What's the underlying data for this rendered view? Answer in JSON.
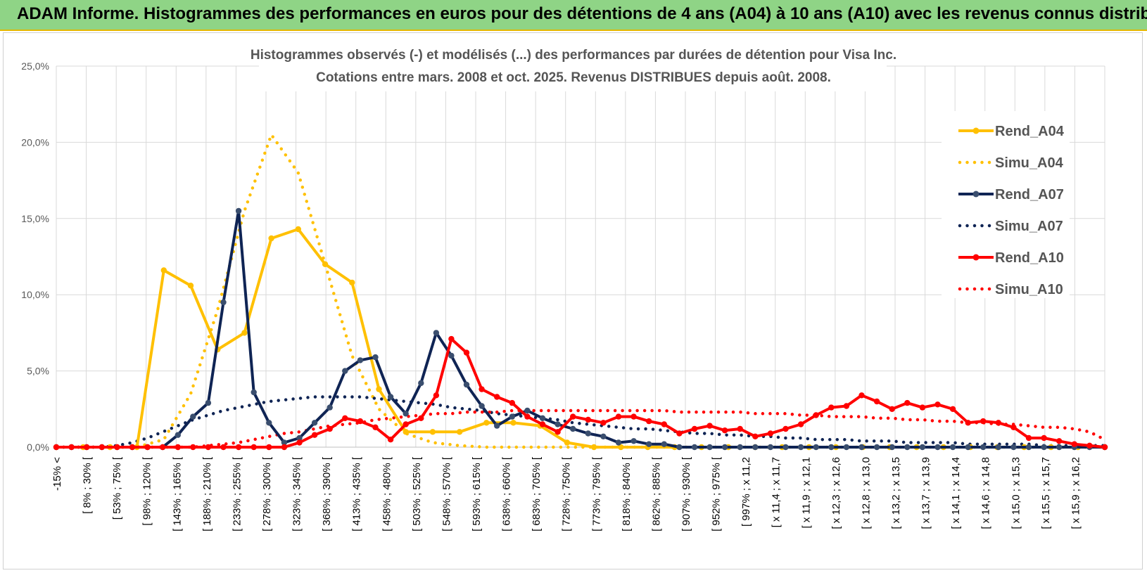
{
  "header": {
    "title": "ADAM Informe. Histogrammes des performances en euros pour des détentions de 4 ans (A04) à 10 ans (A10) avec les revenus connus distribués"
  },
  "chart_data": {
    "type": "line",
    "title": "Histogrammes observés (-) et modélisés (...) des performances par durées de détention pour Visa Inc.",
    "subtitle": "Cotations entre mars. 2008 et oct. 2025. Revenus DISTRIBUES depuis août. 2008.",
    "y_ticks": [
      "0,0%",
      "5,0%",
      "10,0%",
      "15,0%",
      "20,0%",
      "25,0%"
    ],
    "ylim": [
      0,
      25
    ],
    "legend_position": "right",
    "x_tick_labels": [
      "-15% <",
      "[ 8% ; 30% [",
      "[ 53% ; 75% [",
      "[ 98% ; 120% [",
      "[ 143% ; 165% [",
      "[ 188% ; 210% [",
      "[ 233% ; 255% [",
      "[ 278% ; 300% [",
      "[ 323% ; 345% [",
      "[ 368% ; 390% [",
      "[ 413% ; 435% [",
      "[ 458% ; 480% [",
      "[ 503% ; 525% [",
      "[ 548% ; 570% [",
      "[ 593% ; 615% [",
      "[ 638% ; 660% [",
      "[ 683% ; 705% [",
      "[ 728% ; 750% [",
      "[ 773% ; 795% [",
      "[ 818% ; 840% [",
      "[ 862% ; 885% [",
      "[ 907% ; 930% [",
      "[ 952% ; 975% [",
      "[ 997% ; x 11,2",
      "[ x 11,4 ; x 11,7",
      "[ x 11,9 ; x 12,1",
      "[ x 12,3 ; x 12,6",
      "[ x 12,8 ; x 13,0",
      "[ x 13,2 ; x 13,5",
      "[ x 13,7 ; x 13,9",
      "[ x 14,1 ; x 14,4",
      "[ x 14,6 ; x 14,8",
      "[ x 15,0 ; x 15,3",
      "[ x 15,5 ; x 15,7",
      "[ x 15,9 ; x 16,2"
    ],
    "series": [
      {
        "name": "Rend_A04",
        "style": "solid",
        "color": "#ffc000",
        "values": [
          0,
          0,
          0,
          0,
          11.6,
          10.6,
          6.4,
          7.5,
          13.7,
          14.3,
          12.0,
          10.8,
          3.8,
          1.0,
          1.0,
          1.0,
          1.6,
          1.6,
          1.4,
          0.3,
          0,
          0,
          0,
          0,
          0,
          0,
          0,
          0,
          0,
          0,
          0,
          0,
          0,
          0,
          0,
          0,
          0,
          0,
          0,
          0
        ]
      },
      {
        "name": "Simu_A04",
        "style": "dotted",
        "color": "#ffc000",
        "values": [
          0,
          0,
          0,
          0,
          0.5,
          3.5,
          9.0,
          15.5,
          20.5,
          18.0,
          12.0,
          6.0,
          2.5,
          0.9,
          0.3,
          0.1,
          0,
          0,
          0,
          0,
          0,
          0,
          0,
          0,
          0,
          0,
          0,
          0,
          0,
          0,
          0,
          0,
          0,
          0,
          0,
          0,
          0,
          0,
          0,
          0
        ]
      },
      {
        "name": "Rend_A07",
        "style": "solid",
        "color": "#0f2454",
        "values": [
          0,
          0,
          0,
          0,
          0,
          0,
          0,
          0,
          0.8,
          2.0,
          2.9,
          9.5,
          15.5,
          3.6,
          1.6,
          0.3,
          0.6,
          1.6,
          2.6,
          5.0,
          5.7,
          5.9,
          3.3,
          2.2,
          4.2,
          7.5,
          6.0,
          4.1,
          2.7,
          1.4,
          2.0,
          2.4,
          1.9,
          1.5,
          1.2,
          0.9,
          0.7,
          0.3,
          0.4,
          0.2,
          0.2,
          0,
          0,
          0,
          0,
          0,
          0,
          0,
          0,
          0,
          0,
          0,
          0,
          0,
          0,
          0,
          0,
          0,
          0,
          0,
          0,
          0,
          0,
          0,
          0,
          0,
          0,
          0,
          0,
          0
        ]
      },
      {
        "name": "Simu_A07",
        "style": "dotted",
        "color": "#0f2454",
        "values": [
          0,
          0,
          0,
          0,
          0.1,
          0.3,
          0.6,
          1.0,
          1.4,
          1.8,
          2.1,
          2.4,
          2.6,
          2.8,
          3.0,
          3.1,
          3.2,
          3.3,
          3.3,
          3.3,
          3.3,
          3.2,
          3.1,
          3.0,
          2.9,
          2.8,
          2.6,
          2.5,
          2.4,
          2.2,
          2.1,
          2.0,
          1.9,
          1.8,
          1.6,
          1.5,
          1.4,
          1.3,
          1.2,
          1.2,
          1.1,
          1.0,
          0.9,
          0.9,
          0.8,
          0.8,
          0.7,
          0.7,
          0.6,
          0.6,
          0.5,
          0.5,
          0.5,
          0.4,
          0.4,
          0.4,
          0.3,
          0.3,
          0.3,
          0.3,
          0.2,
          0.2,
          0.2,
          0.2,
          0.2,
          0.1,
          0.1,
          0.1,
          0.1,
          0.1
        ]
      },
      {
        "name": "Rend_A10",
        "style": "solid",
        "color": "#ff0000",
        "values": [
          0,
          0,
          0,
          0,
          0,
          0,
          0,
          0,
          0,
          0,
          0,
          0,
          0,
          0,
          0,
          0,
          0.3,
          0.8,
          1.2,
          1.9,
          1.7,
          1.3,
          0.5,
          1.5,
          1.9,
          3.4,
          7.1,
          6.2,
          3.8,
          3.3,
          2.9,
          2.0,
          1.5,
          1.0,
          2.0,
          1.8,
          1.6,
          2.0,
          2.0,
          1.7,
          1.5,
          0.9,
          1.2,
          1.4,
          1.1,
          1.2,
          0.7,
          0.9,
          1.2,
          1.5,
          2.1,
          2.6,
          2.7,
          3.4,
          3.0,
          2.5,
          2.9,
          2.6,
          2.8,
          2.5,
          1.6,
          1.7,
          1.6,
          1.3,
          0.6,
          0.6,
          0.4,
          0.2,
          0.1,
          0
        ]
      },
      {
        "name": "Simu_A10",
        "style": "dotted",
        "color": "#ff0000",
        "values": [
          0,
          0,
          0,
          0,
          0,
          0,
          0,
          0,
          0,
          0,
          0.1,
          0.2,
          0.3,
          0.5,
          0.7,
          0.9,
          1.0,
          1.2,
          1.4,
          1.5,
          1.6,
          1.8,
          1.9,
          2.0,
          2.1,
          2.2,
          2.2,
          2.3,
          2.3,
          2.3,
          2.4,
          2.4,
          2.4,
          2.4,
          2.4,
          2.4,
          2.4,
          2.4,
          2.4,
          2.4,
          2.4,
          2.3,
          2.3,
          2.3,
          2.3,
          2.3,
          2.2,
          2.2,
          2.2,
          2.1,
          2.1,
          2.0,
          2.0,
          2.0,
          1.9,
          1.9,
          1.8,
          1.8,
          1.7,
          1.7,
          1.6,
          1.6,
          1.5,
          1.5,
          1.4,
          1.3,
          1.3,
          1.2,
          1.0,
          0.5
        ]
      }
    ]
  }
}
